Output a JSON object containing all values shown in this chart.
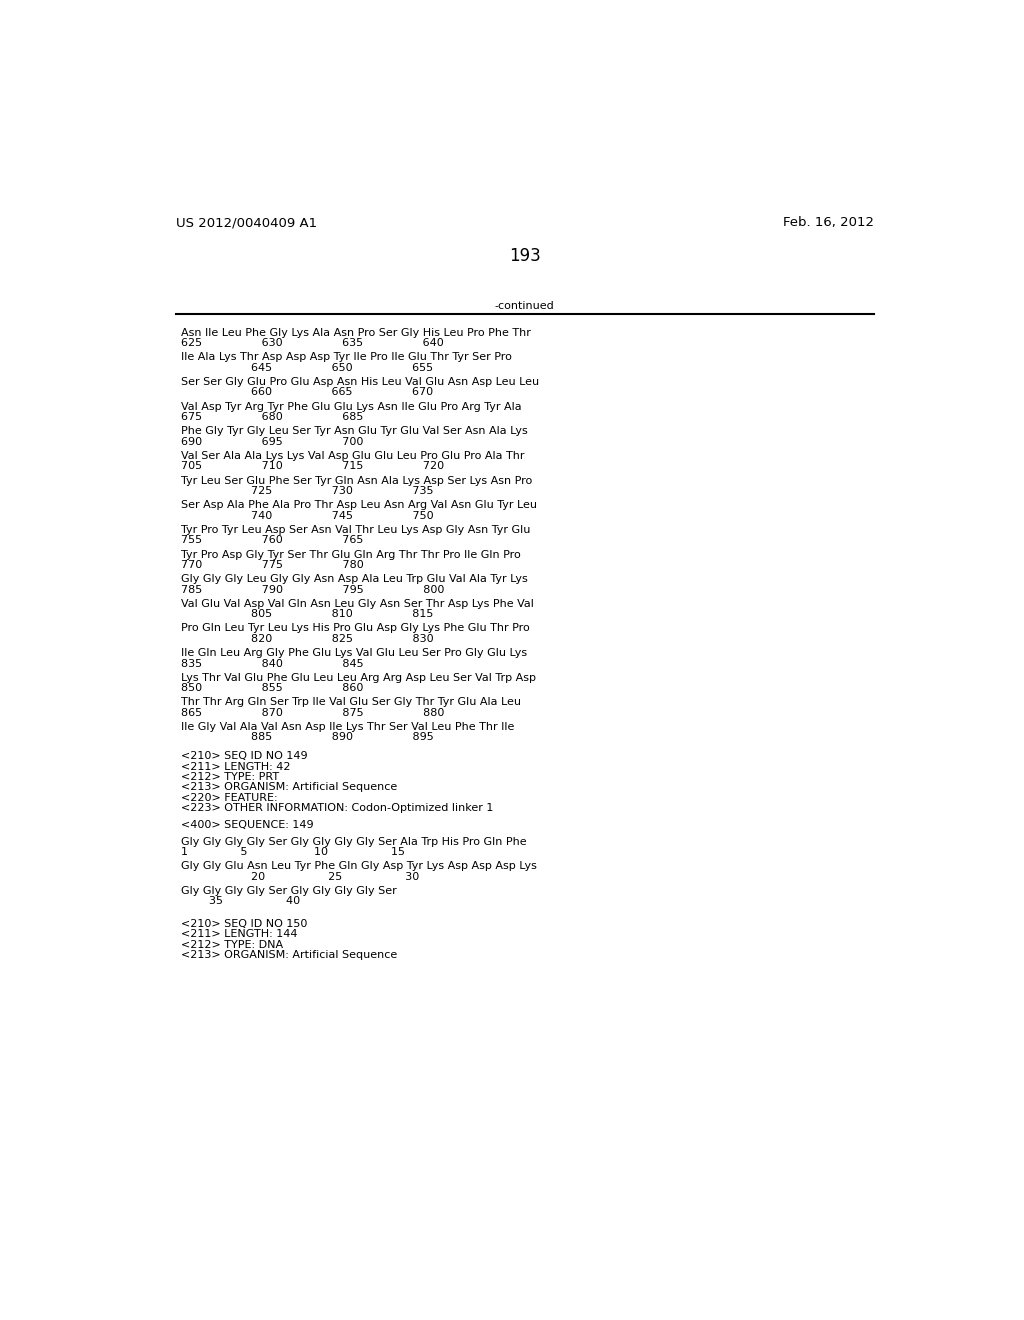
{
  "header_left": "US 2012/0040409 A1",
  "header_right": "Feb. 16, 2012",
  "page_number": "193",
  "continued_label": "-continued",
  "background_color": "#ffffff",
  "text_color": "#000000",
  "font_size_header": 9.5,
  "font_size_body": 8.0,
  "font_size_page": 12,
  "sequence_blocks": [
    {
      "line1": "Asn Ile Leu Phe Gly Lys Ala Asn Pro Ser Gly His Leu Pro Phe Thr",
      "line2": "625                 630                 635                 640"
    },
    {
      "line1": "Ile Ala Lys Thr Asp Asp Asp Tyr Ile Pro Ile Glu Thr Tyr Ser Pro",
      "line2": "                    645                 650                 655"
    },
    {
      "line1": "Ser Ser Gly Glu Pro Glu Asp Asn His Leu Val Glu Asn Asp Leu Leu",
      "line2": "                    660                 665                 670"
    },
    {
      "line1": "Val Asp Tyr Arg Tyr Phe Glu Glu Lys Asn Ile Glu Pro Arg Tyr Ala",
      "line2": "675                 680                 685"
    },
    {
      "line1": "Phe Gly Tyr Gly Leu Ser Tyr Asn Glu Tyr Glu Val Ser Asn Ala Lys",
      "line2": "690                 695                 700"
    },
    {
      "line1": "Val Ser Ala Ala Lys Lys Val Asp Glu Glu Leu Pro Glu Pro Ala Thr",
      "line2": "705                 710                 715                 720"
    },
    {
      "line1": "Tyr Leu Ser Glu Phe Ser Tyr Gln Asn Ala Lys Asp Ser Lys Asn Pro",
      "line2": "                    725                 730                 735"
    },
    {
      "line1": "Ser Asp Ala Phe Ala Pro Thr Asp Leu Asn Arg Val Asn Glu Tyr Leu",
      "line2": "                    740                 745                 750"
    },
    {
      "line1": "Tyr Pro Tyr Leu Asp Ser Asn Val Thr Leu Lys Asp Gly Asn Tyr Glu",
      "line2": "755                 760                 765"
    },
    {
      "line1": "Tyr Pro Asp Gly Tyr Ser Thr Glu Gln Arg Thr Thr Pro Ile Gln Pro",
      "line2": "770                 775                 780"
    },
    {
      "line1": "Gly Gly Gly Leu Gly Gly Asn Asp Ala Leu Trp Glu Val Ala Tyr Lys",
      "line2": "785                 790                 795                 800"
    },
    {
      "line1": "Val Glu Val Asp Val Gln Asn Leu Gly Asn Ser Thr Asp Lys Phe Val",
      "line2": "                    805                 810                 815"
    },
    {
      "line1": "Pro Gln Leu Tyr Leu Lys His Pro Glu Asp Gly Lys Phe Glu Thr Pro",
      "line2": "                    820                 825                 830"
    },
    {
      "line1": "Ile Gln Leu Arg Gly Phe Glu Lys Val Glu Leu Ser Pro Gly Glu Lys",
      "line2": "835                 840                 845"
    },
    {
      "line1": "Lys Thr Val Glu Phe Glu Leu Leu Arg Arg Asp Leu Ser Val Trp Asp",
      "line2": "850                 855                 860"
    },
    {
      "line1": "Thr Thr Arg Gln Ser Trp Ile Val Glu Ser Gly Thr Tyr Glu Ala Leu",
      "line2": "865                 870                 875                 880"
    },
    {
      "line1": "Ile Gly Val Ala Val Asn Asp Ile Lys Thr Ser Val Leu Phe Thr Ile",
      "line2": "                    885                 890                 895"
    }
  ],
  "seq_info_lines": [
    "<210> SEQ ID NO 149",
    "<211> LENGTH: 42",
    "<212> TYPE: PRT",
    "<213> ORGANISM: Artificial Sequence",
    "<220> FEATURE:",
    "<223> OTHER INFORMATION: Codon-Optimized linker 1"
  ],
  "seq_400_label": "<400> SEQUENCE: 149",
  "seq_400_blocks": [
    {
      "line1": "Gly Gly Gly Gly Ser Gly Gly Gly Gly Ser Ala Trp His Pro Gln Phe",
      "line2": "1               5                   10                  15"
    },
    {
      "line1": "Gly Gly Glu Asn Leu Tyr Phe Gln Gly Asp Tyr Lys Asp Asp Asp Lys",
      "line2": "                    20                  25                  30"
    },
    {
      "line1": "Gly Gly Gly Gly Ser Gly Gly Gly Gly Ser",
      "line2": "        35                  40"
    }
  ],
  "seq_150_lines": [
    "<210> SEQ ID NO 150",
    "<211> LENGTH: 144",
    "<212> TYPE: DNA",
    "<213> ORGANISM: Artificial Sequence"
  ]
}
